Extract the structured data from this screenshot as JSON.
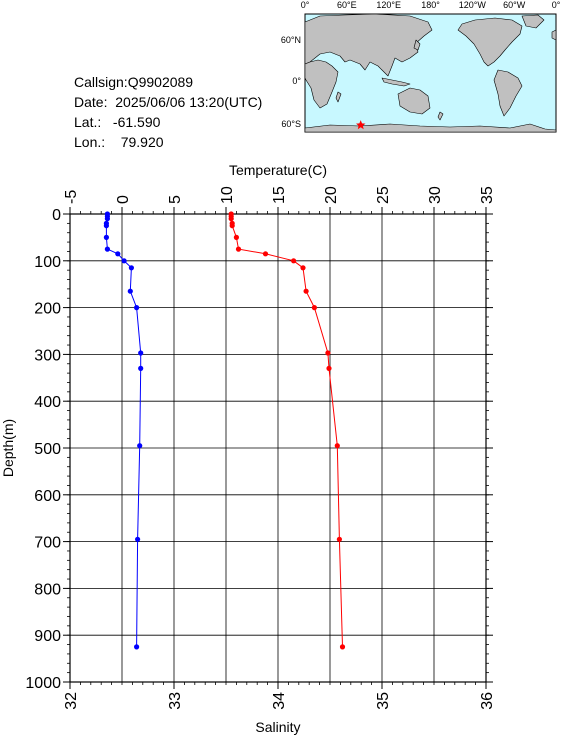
{
  "station": {
    "callsign_label": "Callsign:",
    "callsign": "Q9902089",
    "date_label": "Date:",
    "date": "2025/06/06 13:20(UTC)",
    "lat_label": "Lat.:",
    "lat": "-61.590",
    "lon_label": "Lon.:",
    "lon": "79.920"
  },
  "map": {
    "top_labels": [
      "0°",
      "60°E",
      "120°E",
      "180°",
      "120°W",
      "60°W",
      "0°"
    ],
    "lat_labels": [
      "60°N",
      "0°",
      "60°S"
    ],
    "ocean_color": "#c8f8ff",
    "land_color": "#c0c0c0",
    "marker_color": "#ff0000",
    "marker_icon": "star-icon"
  },
  "chart_data": {
    "type": "line",
    "ylabel": "Depth(m)",
    "yticks": [
      0,
      100,
      200,
      300,
      400,
      500,
      600,
      700,
      800,
      900,
      1000
    ],
    "ylim": [
      1000,
      0
    ],
    "grid": true,
    "temperature_axis": {
      "label": "Temperature(C)",
      "ticks": [
        -5,
        0,
        5,
        10,
        15,
        20,
        25,
        30,
        35
      ],
      "range": [
        -5,
        35
      ],
      "position": "top"
    },
    "salinity_axis": {
      "label": "Salinity",
      "ticks": [
        32,
        33,
        34,
        35,
        36
      ],
      "range": [
        32,
        36
      ],
      "position": "bottom"
    },
    "series": [
      {
        "axis": "temperature",
        "color": "#ff0000",
        "points": [
          [
            10.5,
            0
          ],
          [
            10.5,
            5
          ],
          [
            10.5,
            10
          ],
          [
            10.6,
            20
          ],
          [
            10.6,
            25
          ],
          [
            11.0,
            50
          ],
          [
            11.2,
            75
          ],
          [
            13.8,
            85
          ],
          [
            16.5,
            100
          ],
          [
            17.4,
            115
          ],
          [
            17.7,
            165
          ],
          [
            18.5,
            200
          ],
          [
            19.8,
            297
          ],
          [
            19.9,
            330
          ],
          [
            20.7,
            495
          ],
          [
            20.9,
            695
          ],
          [
            21.2,
            925
          ]
        ]
      },
      {
        "axis": "salinity",
        "color": "#0000ff",
        "points": [
          [
            32.36,
            0
          ],
          [
            32.36,
            5
          ],
          [
            32.36,
            10
          ],
          [
            32.35,
            20
          ],
          [
            32.35,
            25
          ],
          [
            32.35,
            50
          ],
          [
            32.36,
            75
          ],
          [
            32.46,
            85
          ],
          [
            32.52,
            100
          ],
          [
            32.59,
            115
          ],
          [
            32.58,
            165
          ],
          [
            32.64,
            200
          ],
          [
            32.68,
            297
          ],
          [
            32.68,
            330
          ],
          [
            32.67,
            495
          ],
          [
            32.65,
            695
          ],
          [
            32.64,
            925
          ]
        ]
      }
    ]
  }
}
